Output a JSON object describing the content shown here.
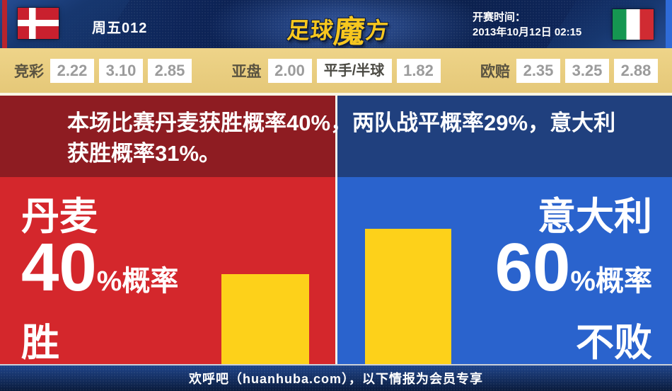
{
  "header": {
    "match_code": "周五012",
    "logo": {
      "part1": "足球",
      "part2": "魔",
      "part3": "方",
      "full": "足球魔方"
    },
    "kickoff_label": "开赛时间：",
    "kickoff_time": "2013年10月12日 02:15",
    "home_flag": "denmark",
    "away_flag": "italy"
  },
  "odds": {
    "jingcai": {
      "label": "竞彩",
      "home": "2.22",
      "draw": "3.10",
      "away": "2.85"
    },
    "yapan": {
      "label": "亚盘",
      "home": "2.00",
      "handicap": "平手/半球",
      "away": "1.82"
    },
    "oupei": {
      "label": "欧赔",
      "home": "2.35",
      "draw": "3.25",
      "away": "2.88"
    }
  },
  "summary": {
    "line1": "本场比赛丹麦获胜概率40%，两队战平概率29%，意大利",
    "line2": "获胜概率31%。"
  },
  "home": {
    "team": "丹麦",
    "percent": "40",
    "suffix": "%概率",
    "outcome": "胜",
    "bar_style": "height:127px"
  },
  "away": {
    "team": "意大利",
    "percent": "60",
    "suffix": "%概率",
    "outcome": "不败",
    "bar_style": "height:191px"
  },
  "footer": {
    "text": "欢呼吧（huanhuba.com），以下情报为会员专享"
  },
  "colors": {
    "header_navy": "#0d2458",
    "odds_bar_tan": "#e7cc7e",
    "odds_value_gray": "#9b9b9b",
    "dark_red_banner": "#8e1c22",
    "bright_red_panel": "#d4272c",
    "dark_blue_banner": "#20407e",
    "bright_blue_panel": "#2a63cd",
    "probability_bar_yellow": "#fdd11a",
    "logo_gold": "#f7c71f",
    "left_edge_strip_red": "#b8242d",
    "right_edge_strip_blue": "#2f6bd8"
  },
  "chart_data": {
    "type": "bar",
    "categories": [
      "丹麦 胜",
      "意大利 不败"
    ],
    "values": [
      40,
      60
    ],
    "unit": "%",
    "bar_color": "#fdd11a",
    "ylim": [
      0,
      100
    ],
    "title": "本场比赛胜平负概率",
    "probabilities": {
      "home_win_pct": 40,
      "draw_pct": 29,
      "away_win_pct": 31
    },
    "annotations": [
      "丹麦 40%概率 胜",
      "意大利 60%概率 不败"
    ],
    "legend": "off",
    "grid": "off"
  }
}
